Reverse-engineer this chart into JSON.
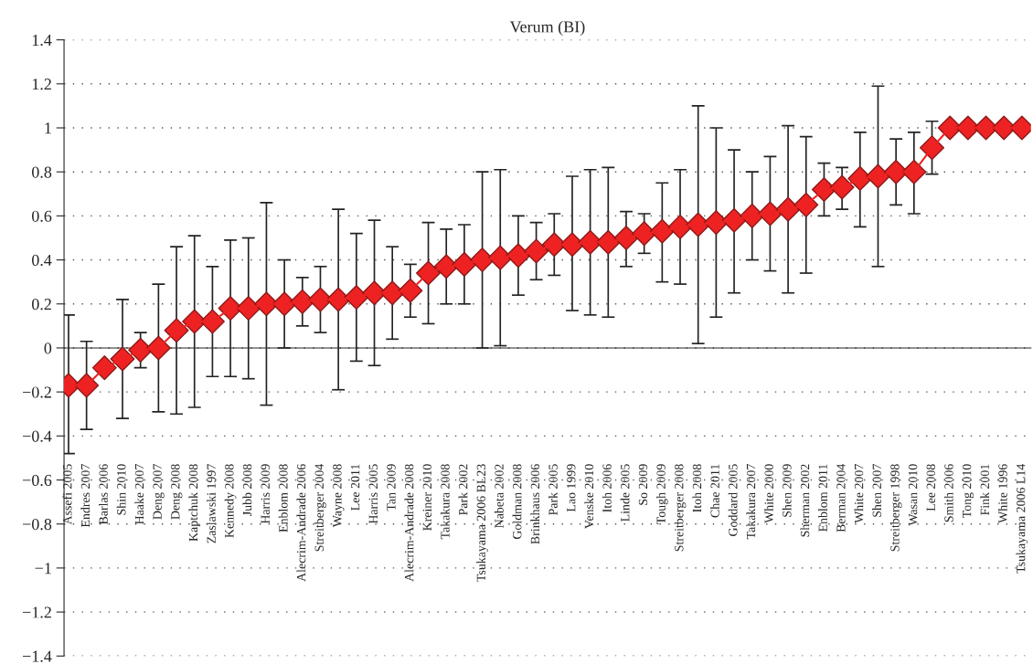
{
  "chart_data": {
    "type": "line",
    "title": "Verum (BI)",
    "categories": [
      "Assefi 2005",
      "Endres 2007",
      "Barlas 2006",
      "Shin 2010",
      "Haake 2007",
      "Deng 2007",
      "Deng 2008",
      "Kaptchuk 2008",
      "Zaslawski 1997",
      "Kennedy 2008",
      "Jubb 2008",
      "Harris 2009",
      "Enblom 2008",
      "Alecrim-Andrade 2006",
      "Streitberger 2004",
      "Wayne 2008",
      "Lee 2011",
      "Harris 2005",
      "Tan 2009",
      "Alecrim-Andrade 2008",
      "Kreiner 2010",
      "Takakura 2008",
      "Park 2002",
      "Tsukayama 2006 BL23",
      "Nabeta 2002",
      "Goldman 2008",
      "Brinkhaus 2006",
      "Park 2005",
      "Lao 1999",
      "Venske 2010",
      "Itoh 2006",
      "Linde 2005",
      "So 2009",
      "Tough 2009",
      "Streitberger 2008",
      "Itoh 2008",
      "Chae 2011",
      "Goddard 2005",
      "Takakura 2007",
      "White 2000",
      "Shen 2009",
      "Sherman 2002",
      "Enblom 2011",
      "Berman 2004",
      "White 2007",
      "Shen 2007",
      "Streitberger 1998",
      "Wasan 2010",
      "Lee 2008",
      "Smith 2006",
      "Tong 2010",
      "Fink 2001",
      "White 1996",
      "Tsukayama 2006 L14"
    ],
    "series": [
      {
        "color": "#ee2222",
        "values": [
          -0.17,
          -0.17,
          -0.09,
          -0.05,
          -0.01,
          0.0,
          0.08,
          0.12,
          0.12,
          0.18,
          0.18,
          0.2,
          0.2,
          0.21,
          0.22,
          0.22,
          0.23,
          0.25,
          0.25,
          0.26,
          0.34,
          0.37,
          0.38,
          0.4,
          0.41,
          0.42,
          0.44,
          0.47,
          0.47,
          0.48,
          0.48,
          0.5,
          0.52,
          0.53,
          0.55,
          0.56,
          0.57,
          0.58,
          0.6,
          0.61,
          0.63,
          0.65,
          0.72,
          0.73,
          0.77,
          0.78,
          0.8,
          0.8,
          0.91,
          1.0,
          1.0,
          1.0,
          1.0,
          1.0
        ],
        "errors": [
          [
            -0.48,
            0.15
          ],
          [
            -0.37,
            0.03
          ],
          null,
          [
            -0.32,
            0.22
          ],
          [
            -0.09,
            0.07
          ],
          [
            -0.29,
            0.29
          ],
          [
            -0.3,
            0.46
          ],
          [
            -0.27,
            0.51
          ],
          [
            -0.13,
            0.37
          ],
          [
            -0.13,
            0.49
          ],
          [
            -0.14,
            0.5
          ],
          [
            -0.26,
            0.66
          ],
          [
            0.0,
            0.4
          ],
          [
            0.1,
            0.32
          ],
          [
            0.07,
            0.37
          ],
          [
            -0.19,
            0.63
          ],
          [
            -0.06,
            0.52
          ],
          [
            -0.08,
            0.58
          ],
          [
            0.04,
            0.46
          ],
          [
            0.14,
            0.38
          ],
          [
            0.11,
            0.57
          ],
          [
            0.2,
            0.54
          ],
          [
            0.2,
            0.56
          ],
          [
            0.0,
            0.8
          ],
          [
            0.01,
            0.81
          ],
          [
            0.24,
            0.6
          ],
          [
            0.31,
            0.57
          ],
          [
            0.33,
            0.61
          ],
          [
            0.17,
            0.78
          ],
          [
            0.15,
            0.81
          ],
          [
            0.14,
            0.82
          ],
          [
            0.37,
            0.62
          ],
          [
            0.43,
            0.61
          ],
          [
            0.3,
            0.75
          ],
          [
            0.29,
            0.81
          ],
          [
            0.02,
            1.1
          ],
          [
            0.14,
            1.0
          ],
          [
            0.25,
            0.9
          ],
          [
            0.4,
            0.8
          ],
          [
            0.35,
            0.87
          ],
          [
            0.25,
            1.01
          ],
          [
            0.34,
            0.96
          ],
          [
            0.6,
            0.84
          ],
          [
            0.63,
            0.82
          ],
          [
            0.55,
            0.98
          ],
          [
            0.37,
            1.19
          ],
          [
            0.65,
            0.95
          ],
          [
            0.61,
            0.98
          ],
          [
            0.79,
            1.03
          ],
          null,
          null,
          null,
          null,
          null
        ]
      }
    ],
    "ylim": [
      -1.4,
      1.4
    ],
    "yticks": [
      {
        "value": -1.4,
        "label": "−1.4"
      },
      {
        "value": -1.2,
        "label": "−1.2"
      },
      {
        "value": -1,
        "label": "−1"
      },
      {
        "value": -0.8,
        "label": "−0.8"
      },
      {
        "value": -0.6,
        "label": "−0.6"
      },
      {
        "value": -0.4,
        "label": "−0.4"
      },
      {
        "value": -0.2,
        "label": "−0.2"
      },
      0,
      {
        "value": 0.2,
        "label": "0.2"
      },
      {
        "value": 0.4,
        "label": "0.4"
      },
      {
        "value": 0.6,
        "label": "0.6"
      },
      {
        "value": 0.8,
        "label": "0.8"
      },
      1,
      {
        "value": 1.2,
        "label": "1.2"
      },
      {
        "value": 1.4,
        "label": "1.4"
      }
    ],
    "grid": "y",
    "marker": "diamond",
    "line_style": "solid",
    "legend": false
  }
}
